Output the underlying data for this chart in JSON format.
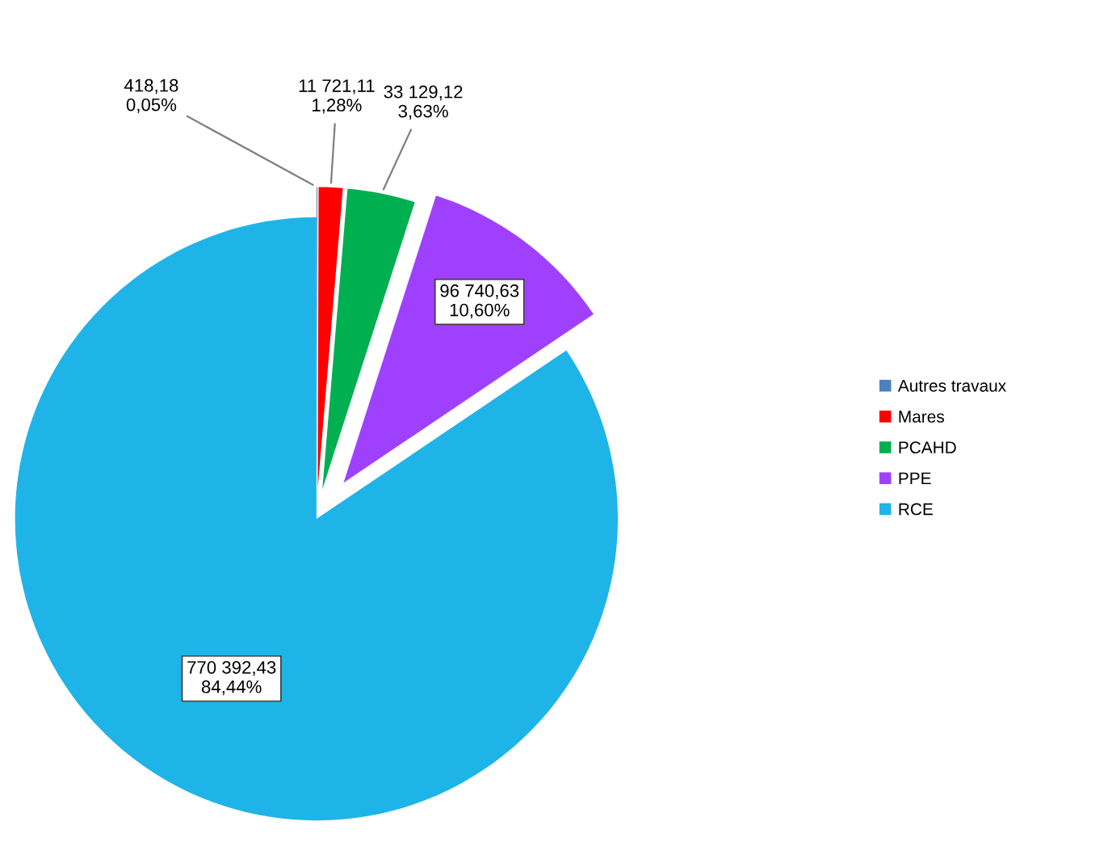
{
  "chart_data": {
    "type": "pie",
    "categories": [
      "Autres travaux",
      "Mares",
      "PCAHD",
      "PPE",
      "RCE"
    ],
    "values": [
      418.18,
      11721.11,
      33129.12,
      96740.63,
      770392.43
    ],
    "value_labels": [
      "418,18\n0,05%",
      "11 721,11\n1,28%",
      "33 129,12\n3,63%",
      "96 740,63\n10,60%",
      "770 392,43\n84,44%"
    ],
    "colors": [
      "#4f81bd",
      "#ff0000",
      "#00b050",
      "#a040ff",
      "#1fb4e8"
    ],
    "legend": "right"
  }
}
